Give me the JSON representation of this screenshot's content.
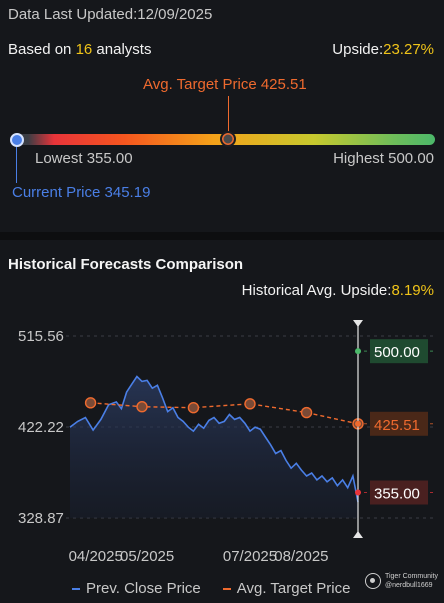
{
  "header": {
    "updated_label": "Data Last Updated:",
    "updated_date": "12/09/2025",
    "based_on_prefix": "Based on ",
    "analyst_count": "16",
    "based_on_suffix": " analysts",
    "upside_label": "Upside:",
    "upside_value": "23.27%"
  },
  "range": {
    "avg_target_label": "Avg. Target Price 425.51",
    "lowest_label": "Lowest 355.00",
    "highest_label": "Highest 500.00",
    "current_label": "Current Price 345.19",
    "current_price": 345.19,
    "lowest": 355.0,
    "highest": 500.0,
    "avg_target": 425.51
  },
  "historical": {
    "title": "Historical Forecasts Comparison",
    "upside_label": "Historical Avg. Upside:",
    "upside_value": "8.19%"
  },
  "legend": {
    "prev_close": "Prev. Close Price",
    "avg_target": "Avg. Target Price"
  },
  "watermark": {
    "brand": "Tiger Community",
    "handle": "@nerdbull1669"
  },
  "colors": {
    "price_line": "#4a7fe6",
    "target_line": "#ef6a2e",
    "high_box": "#1f4a30",
    "avg_box": "#4a2818",
    "low_box": "#4a2020",
    "upside_highlight": "#f0c419"
  },
  "chart_data": {
    "type": "line",
    "y_ticks": [
      "515.56",
      "422.22",
      "328.87"
    ],
    "ylim": [
      328.87,
      515.56
    ],
    "x_ticks": [
      "04/2025",
      "05/2025",
      "07/2025",
      "08/2025"
    ],
    "x_tick_positions": [
      0.5,
      1.5,
      3.5,
      4.5
    ],
    "x_range": [
      0,
      6
    ],
    "forecast_x": 5.6,
    "series": [
      {
        "name": "Prev. Close Price",
        "x": [
          0,
          0.15,
          0.3,
          0.45,
          0.6,
          0.75,
          0.9,
          1.0,
          1.1,
          1.2,
          1.3,
          1.4,
          1.5,
          1.6,
          1.7,
          1.8,
          1.9,
          2.0,
          2.1,
          2.2,
          2.3,
          2.4,
          2.5,
          2.6,
          2.7,
          2.8,
          2.9,
          3.0,
          3.1,
          3.2,
          3.3,
          3.4,
          3.5,
          3.6,
          3.7,
          3.8,
          3.9,
          4.0,
          4.1,
          4.2,
          4.3,
          4.4,
          4.5,
          4.6,
          4.7,
          4.8,
          4.9,
          5.0,
          5.1,
          5.2,
          5.3,
          5.4,
          5.5,
          5.6
        ],
        "values": [
          422,
          428,
          432,
          419,
          430,
          445,
          448,
          441,
          458,
          466,
          474,
          469,
          470,
          462,
          465,
          452,
          438,
          442,
          432,
          428,
          422,
          418,
          425,
          421,
          429,
          432,
          426,
          428,
          435,
          430,
          432,
          426,
          418,
          422,
          420,
          412,
          404,
          395,
          398,
          388,
          380,
          385,
          378,
          372,
          375,
          368,
          372,
          366,
          370,
          362,
          368,
          360,
          372,
          345.19
        ]
      },
      {
        "name": "Avg. Target Price",
        "x": [
          0.4,
          1.4,
          2.4,
          3.5,
          4.6,
          5.6
        ],
        "values": [
          447,
          443,
          442,
          446,
          437,
          425.51
        ]
      }
    ],
    "forecast_labels": [
      {
        "text": "500.00",
        "value": 500.0,
        "kind": "high"
      },
      {
        "text": "425.51",
        "value": 425.51,
        "kind": "avg"
      },
      {
        "text": "355.00",
        "value": 355.0,
        "kind": "low"
      }
    ]
  }
}
